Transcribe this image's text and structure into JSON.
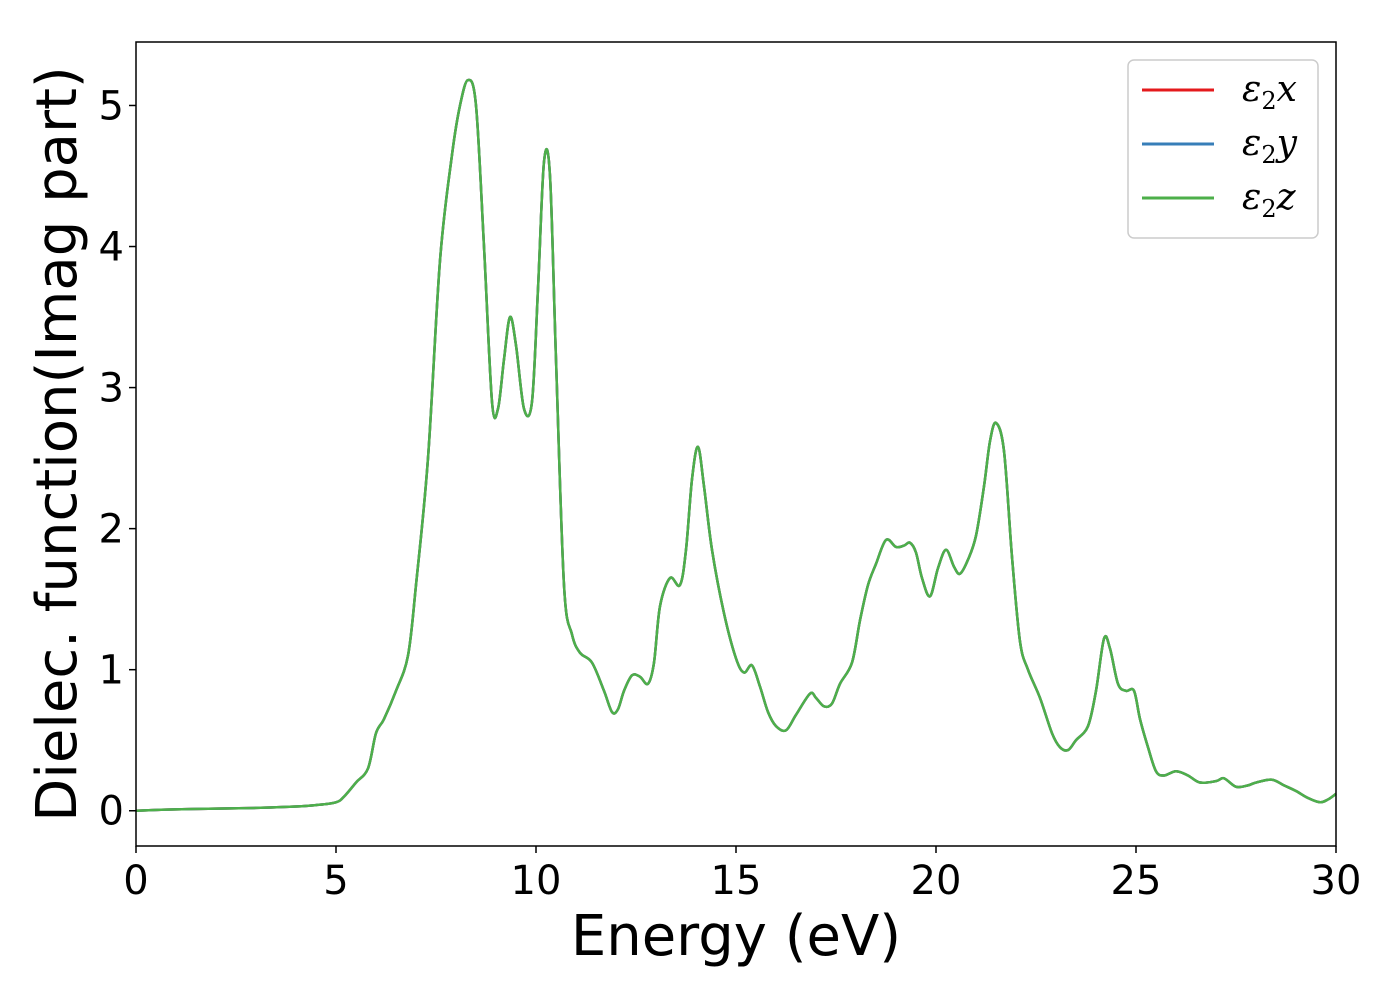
{
  "chart_data": {
    "type": "line",
    "xlabel": "Energy (eV)",
    "ylabel": "Dielec. function(Imag part)",
    "xlim": [
      0,
      30
    ],
    "ylim": [
      -0.25,
      5.45
    ],
    "xticks": [
      0,
      5,
      10,
      15,
      20,
      25,
      30
    ],
    "yticks": [
      0,
      1,
      2,
      3,
      4,
      5
    ],
    "grid": false,
    "legend_position": "top-right",
    "x": [
      0,
      1,
      2,
      3,
      4,
      4.5,
      5,
      5.2,
      5.5,
      5.8,
      6.0,
      6.2,
      6.5,
      6.8,
      7.0,
      7.3,
      7.6,
      7.9,
      8.1,
      8.3,
      8.5,
      8.7,
      8.9,
      9.05,
      9.2,
      9.35,
      9.5,
      9.7,
      9.9,
      10.05,
      10.2,
      10.35,
      10.5,
      10.7,
      10.9,
      11.1,
      11.4,
      11.7,
      11.9,
      12.05,
      12.2,
      12.4,
      12.6,
      12.8,
      12.95,
      13.1,
      13.35,
      13.6,
      13.75,
      13.9,
      14.05,
      14.2,
      14.4,
      14.7,
      15.0,
      15.2,
      15.4,
      15.6,
      15.8,
      16.0,
      16.25,
      16.5,
      16.85,
      17.0,
      17.2,
      17.4,
      17.6,
      17.9,
      18.1,
      18.3,
      18.5,
      18.75,
      19.0,
      19.2,
      19.35,
      19.5,
      19.65,
      19.85,
      20.05,
      20.25,
      20.45,
      20.6,
      20.8,
      21.0,
      21.2,
      21.35,
      21.5,
      21.7,
      21.9,
      22.1,
      22.3,
      22.6,
      22.9,
      23.1,
      23.3,
      23.5,
      23.8,
      24.0,
      24.2,
      24.35,
      24.55,
      24.75,
      24.95,
      25.1,
      25.3,
      25.5,
      25.7,
      26.0,
      26.3,
      26.6,
      27.0,
      27.2,
      27.5,
      27.8,
      28.0,
      28.4,
      28.7,
      29.0,
      29.3,
      29.6,
      29.8,
      30.0
    ],
    "series": [
      {
        "name": "ε2x",
        "color": "#e41a1c",
        "y": [
          0.0,
          0.01,
          0.015,
          0.02,
          0.03,
          0.04,
          0.06,
          0.1,
          0.2,
          0.3,
          0.55,
          0.65,
          0.85,
          1.1,
          1.6,
          2.5,
          3.9,
          4.65,
          5.0,
          5.18,
          5.0,
          4.0,
          2.9,
          2.85,
          3.2,
          3.5,
          3.3,
          2.85,
          2.9,
          3.7,
          4.6,
          4.5,
          3.2,
          1.6,
          1.25,
          1.12,
          1.05,
          0.85,
          0.7,
          0.72,
          0.85,
          0.96,
          0.95,
          0.9,
          1.05,
          1.45,
          1.65,
          1.6,
          1.85,
          2.35,
          2.58,
          2.3,
          1.85,
          1.4,
          1.08,
          0.98,
          1.03,
          0.88,
          0.7,
          0.6,
          0.57,
          0.68,
          0.83,
          0.8,
          0.74,
          0.76,
          0.9,
          1.05,
          1.35,
          1.6,
          1.75,
          1.92,
          1.87,
          1.88,
          1.9,
          1.83,
          1.65,
          1.52,
          1.72,
          1.85,
          1.73,
          1.68,
          1.78,
          1.95,
          2.3,
          2.62,
          2.75,
          2.55,
          1.8,
          1.2,
          1.0,
          0.8,
          0.55,
          0.45,
          0.43,
          0.5,
          0.6,
          0.85,
          1.22,
          1.15,
          0.9,
          0.85,
          0.85,
          0.65,
          0.45,
          0.28,
          0.25,
          0.28,
          0.25,
          0.2,
          0.21,
          0.23,
          0.17,
          0.18,
          0.2,
          0.22,
          0.18,
          0.14,
          0.09,
          0.06,
          0.08,
          0.12
        ]
      },
      {
        "name": "ε2y",
        "color": "#377eb8",
        "y": [
          0.0,
          0.01,
          0.015,
          0.02,
          0.03,
          0.04,
          0.06,
          0.1,
          0.2,
          0.3,
          0.55,
          0.65,
          0.85,
          1.1,
          1.6,
          2.5,
          3.9,
          4.65,
          5.0,
          5.18,
          5.0,
          4.0,
          2.9,
          2.85,
          3.2,
          3.5,
          3.3,
          2.85,
          2.9,
          3.7,
          4.6,
          4.5,
          3.2,
          1.6,
          1.25,
          1.12,
          1.05,
          0.85,
          0.7,
          0.72,
          0.85,
          0.96,
          0.95,
          0.9,
          1.05,
          1.45,
          1.65,
          1.6,
          1.85,
          2.35,
          2.58,
          2.3,
          1.85,
          1.4,
          1.08,
          0.98,
          1.03,
          0.88,
          0.7,
          0.6,
          0.57,
          0.68,
          0.83,
          0.8,
          0.74,
          0.76,
          0.9,
          1.05,
          1.35,
          1.6,
          1.75,
          1.92,
          1.87,
          1.88,
          1.9,
          1.83,
          1.65,
          1.52,
          1.72,
          1.85,
          1.73,
          1.68,
          1.78,
          1.95,
          2.3,
          2.62,
          2.75,
          2.55,
          1.8,
          1.2,
          1.0,
          0.8,
          0.55,
          0.45,
          0.43,
          0.5,
          0.6,
          0.85,
          1.22,
          1.15,
          0.9,
          0.85,
          0.85,
          0.65,
          0.45,
          0.28,
          0.25,
          0.28,
          0.25,
          0.2,
          0.21,
          0.23,
          0.17,
          0.18,
          0.2,
          0.22,
          0.18,
          0.14,
          0.09,
          0.06,
          0.08,
          0.12
        ]
      },
      {
        "name": "ε2z",
        "color": "#4daf4a",
        "y": [
          0.0,
          0.01,
          0.015,
          0.02,
          0.03,
          0.04,
          0.06,
          0.1,
          0.2,
          0.3,
          0.55,
          0.65,
          0.85,
          1.1,
          1.6,
          2.5,
          3.9,
          4.65,
          5.0,
          5.18,
          5.0,
          4.0,
          2.9,
          2.85,
          3.2,
          3.5,
          3.3,
          2.85,
          2.9,
          3.7,
          4.6,
          4.5,
          3.2,
          1.6,
          1.25,
          1.12,
          1.05,
          0.85,
          0.7,
          0.72,
          0.85,
          0.96,
          0.95,
          0.9,
          1.05,
          1.45,
          1.65,
          1.6,
          1.85,
          2.35,
          2.58,
          2.3,
          1.85,
          1.4,
          1.08,
          0.98,
          1.03,
          0.88,
          0.7,
          0.6,
          0.57,
          0.68,
          0.83,
          0.8,
          0.74,
          0.76,
          0.9,
          1.05,
          1.35,
          1.6,
          1.75,
          1.92,
          1.87,
          1.88,
          1.9,
          1.83,
          1.65,
          1.52,
          1.72,
          1.85,
          1.73,
          1.68,
          1.78,
          1.95,
          2.3,
          2.62,
          2.75,
          2.55,
          1.8,
          1.2,
          1.0,
          0.8,
          0.55,
          0.45,
          0.43,
          0.5,
          0.6,
          0.85,
          1.22,
          1.15,
          0.9,
          0.85,
          0.85,
          0.65,
          0.45,
          0.28,
          0.25,
          0.28,
          0.25,
          0.2,
          0.21,
          0.23,
          0.17,
          0.18,
          0.2,
          0.22,
          0.18,
          0.14,
          0.09,
          0.06,
          0.08,
          0.12
        ]
      }
    ]
  }
}
